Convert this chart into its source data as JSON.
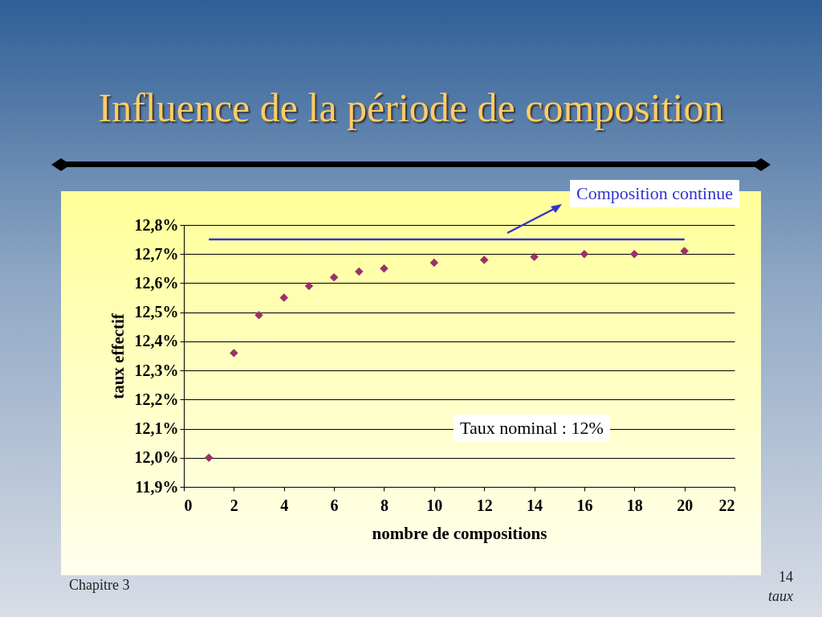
{
  "chart_data": {
    "type": "scatter",
    "title": "Influence de la période de composition",
    "xlabel": "nombre de compositions",
    "ylabel": "taux effectif",
    "annotations": [
      "Composition continue",
      "Taux nominal :  12%",
      "Chapitre 3",
      "14",
      "taux"
    ],
    "series": [
      {
        "color": "#993366",
        "marker": "diamond",
        "x": [
          1,
          2,
          3,
          4,
          5,
          6,
          7,
          8,
          10,
          12,
          14,
          16,
          18,
          20
        ],
        "values": [
          12.0,
          12.36,
          12.49,
          12.55,
          12.59,
          12.62,
          12.64,
          12.65,
          12.67,
          12.68,
          12.69,
          12.7,
          12.7,
          12.71
        ]
      },
      {
        "type": "line",
        "marker": "none",
        "color": "#3333cc",
        "x": [
          1,
          20
        ],
        "values": [
          12.75,
          12.75
        ]
      }
    ],
    "xlim": [
      0,
      22
    ],
    "xticks": [
      0,
      2,
      4,
      6,
      8,
      10,
      12,
      14,
      16,
      18,
      20,
      22
    ],
    "ylim": [
      11.9,
      12.8
    ],
    "yticks": [
      {
        "value": 11.9,
        "label": "11,9%"
      },
      {
        "value": 12.0,
        "label": "12,0%"
      },
      {
        "value": 12.1,
        "label": "12,1%"
      },
      {
        "value": 12.2,
        "label": "12,2%"
      },
      {
        "value": 12.3,
        "label": "12,3%"
      },
      {
        "value": 12.4,
        "label": "12,4%"
      },
      {
        "value": 12.5,
        "label": "12,5%"
      },
      {
        "value": 12.6,
        "label": "12,6%"
      },
      {
        "value": 12.7,
        "label": "12,7%"
      },
      {
        "value": 12.8,
        "label": "12,8%"
      }
    ],
    "grid": "y",
    "line_style": "solid"
  }
}
